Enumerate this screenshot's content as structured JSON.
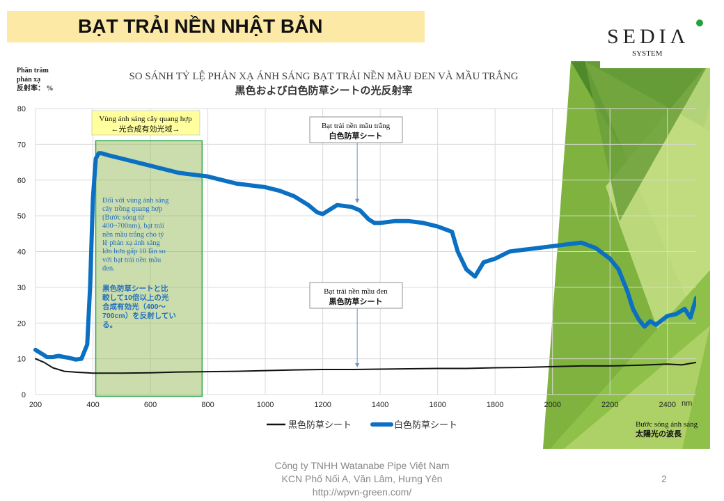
{
  "slide": {
    "title": "BẠT TRẢI NỀN NHẬT BẢN",
    "logo_main": "SEDIΛ",
    "logo_sub": "SYSTEM",
    "footer": {
      "line1": "Công ty TNHH  Watanabe  Pipe  Việt Nam",
      "line2": "KCN Phố Nối A, Văn Lâm, Hưng Yên",
      "line3": "http://wpvn-green.com/"
    },
    "page_number": "2"
  },
  "colors": {
    "white_sheet": "#0b6fc2",
    "black_sheet": "#111111",
    "title_band": "#fde9a6",
    "highlight": "#8db34a"
  },
  "chart_data": {
    "type": "line",
    "title": "SO SÁNH TỶ LỆ PHẢN XẠ ÁNH SÁNG BẠT TRẢI NỀN MẦU ĐEN VÀ MẦU TRẮNG",
    "subtitle": "黒色および白色防草シートの光反射率",
    "ylabel_lines": [
      "Phần trăm",
      "phản xạ",
      "反射率： %"
    ],
    "xunit": "nm",
    "xlabel_lines": [
      "Bước sóng ánh sáng",
      "太陽光の波長"
    ],
    "xlim": [
      200,
      2500
    ],
    "ylim": [
      0,
      80
    ],
    "xticks": [
      200,
      400,
      600,
      800,
      1000,
      1200,
      1400,
      1600,
      1800,
      2000,
      2200,
      2400
    ],
    "yticks": [
      0,
      10,
      20,
      30,
      40,
      50,
      60,
      70,
      80
    ],
    "grid": true,
    "legend_position": "bottom",
    "series": [
      {
        "name": "黒色防草シート",
        "x": [
          200,
          230,
          260,
          300,
          350,
          400,
          450,
          500,
          600,
          700,
          800,
          900,
          1000,
          1100,
          1200,
          1300,
          1400,
          1500,
          1600,
          1700,
          1800,
          1900,
          2000,
          2100,
          2200,
          2300,
          2400,
          2450,
          2500
        ],
        "y": [
          10,
          9,
          7.5,
          6.5,
          6.2,
          6,
          6,
          6,
          6.1,
          6.3,
          6.4,
          6.5,
          6.7,
          6.9,
          7,
          7,
          7.1,
          7.2,
          7.3,
          7.3,
          7.5,
          7.6,
          7.8,
          8,
          8,
          8.2,
          8.5,
          8.3,
          9
        ]
      },
      {
        "name": "白色防草シート",
        "x": [
          200,
          220,
          240,
          260,
          280,
          300,
          320,
          340,
          360,
          380,
          390,
          400,
          410,
          420,
          430,
          450,
          500,
          600,
          700,
          800,
          850,
          900,
          1000,
          1050,
          1100,
          1150,
          1180,
          1200,
          1230,
          1250,
          1300,
          1330,
          1360,
          1380,
          1400,
          1450,
          1500,
          1550,
          1600,
          1650,
          1670,
          1700,
          1730,
          1760,
          1800,
          1850,
          1900,
          1950,
          2000,
          2050,
          2100,
          2150,
          2200,
          2230,
          2260,
          2280,
          2300,
          2320,
          2340,
          2360,
          2400,
          2430,
          2460,
          2480,
          2500
        ],
        "y": [
          12.5,
          11.5,
          10.5,
          10.5,
          10.8,
          10.5,
          10.2,
          9.8,
          10,
          14,
          30,
          55,
          66,
          67.5,
          67.5,
          67,
          66,
          64,
          62,
          61,
          60,
          59,
          58,
          57,
          55.5,
          53,
          51,
          50.5,
          52,
          53,
          52.5,
          51.5,
          49,
          48,
          48,
          48.5,
          48.5,
          48,
          47,
          45.5,
          40,
          35,
          33,
          37,
          38,
          40,
          40.5,
          41,
          41.5,
          42,
          42.5,
          41,
          38,
          35,
          29,
          24,
          21,
          19,
          20.5,
          19.5,
          22,
          22.5,
          24,
          21.5,
          27
        ]
      }
    ],
    "annotations": {
      "pho_band": {
        "range": [
          400,
          700
        ],
        "label_vi": "Vùng ánh sáng cây quang hợp",
        "label_ja": "←光合成有効光域→",
        "desc_vi": [
          "Đối với vùng ánh sáng",
          "cây trồng quang hợp",
          "(Bước sóng từ",
          "400~700nm), bạt trải",
          "nền mầu trắng cho tỷ",
          "lệ phản xạ ánh sáng",
          "lớn hơn gấp 10 lần so",
          "với bạt trải nền mầu",
          "đen."
        ],
        "desc_ja": [
          "黒色防草シートと比",
          "較して10倍以上の光",
          "合成有効光（400～",
          "700cm）を反射してい",
          "る。"
        ]
      },
      "white_label": {
        "vi": "Bạt trải nền mầu trắng",
        "ja": "白色防草シート",
        "point_x": 1320,
        "point_y": 53
      },
      "black_label": {
        "vi": "Bạt trải nền mầu đen",
        "ja": "黒色防草シート",
        "point_x": 1320,
        "point_y": 7
      }
    }
  }
}
